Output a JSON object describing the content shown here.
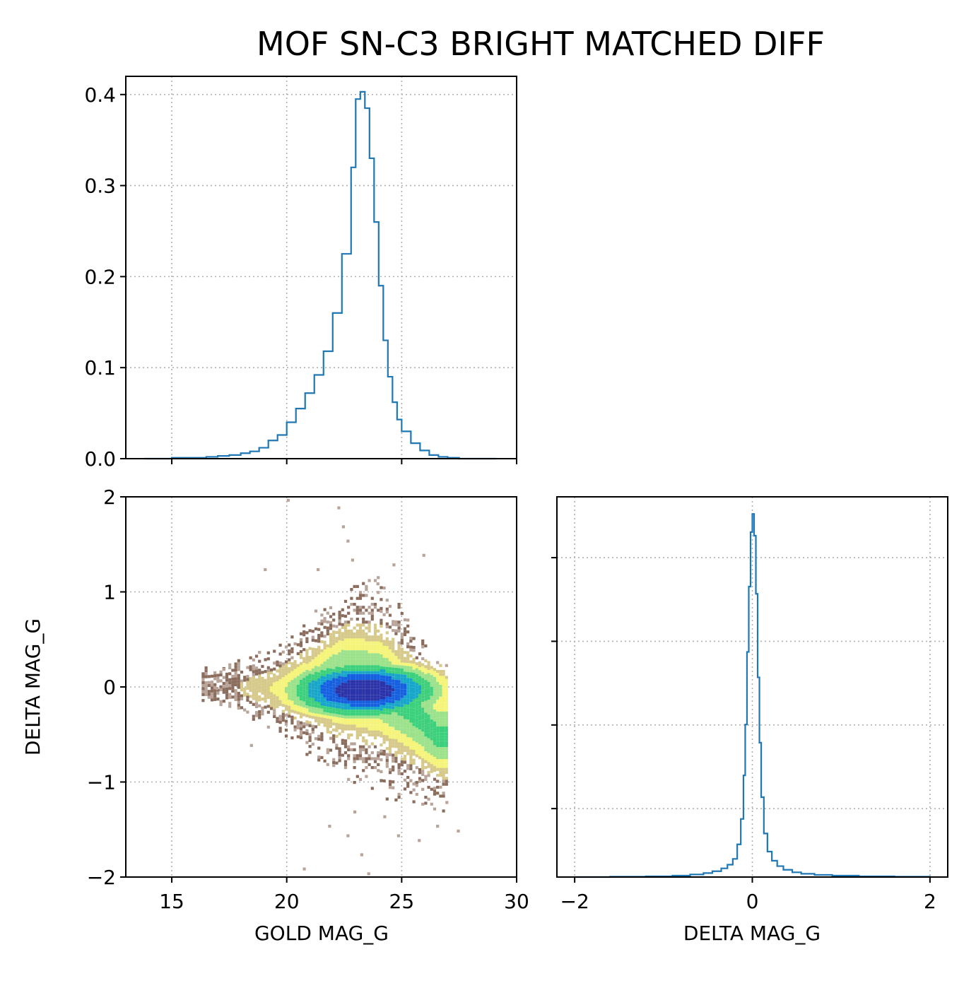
{
  "title": "MOF SN-C3 BRIGHT MATCHED DIFF",
  "colors": {
    "hist": "#1f77b4",
    "grid": "#b0b0b0",
    "colormap": [
      "#b9a49a",
      "#8b6d5e",
      "#d6c98a",
      "#f5f47a",
      "#9be28a",
      "#3dd07c",
      "#17a5c9",
      "#1560e0",
      "#2b33a8"
    ]
  },
  "chart_data": [
    {
      "type": "histogram",
      "name": "top-histogram-gold-mag-g",
      "xlim": [
        13,
        30
      ],
      "ylim": [
        0,
        0.42
      ],
      "xticks": [
        15,
        20,
        25,
        30
      ],
      "yticks": [
        0.0,
        0.1,
        0.2,
        0.3,
        0.4
      ],
      "ytick_labels": [
        "0.0",
        "0.1",
        "0.2",
        "0.3",
        "0.4"
      ],
      "grid": true,
      "x": [
        13.8,
        14.5,
        15.0,
        15.5,
        16.0,
        16.5,
        17.0,
        17.5,
        18.0,
        18.4,
        18.8,
        19.2,
        19.6,
        20.0,
        20.4,
        20.8,
        21.2,
        21.6,
        22.0,
        22.4,
        22.8,
        23.0,
        23.2,
        23.4,
        23.6,
        23.8,
        24.0,
        24.2,
        24.4,
        24.6,
        24.8,
        25.0,
        25.4,
        25.8,
        26.2,
        26.6,
        27.0,
        27.5,
        28.0,
        29.0
      ],
      "values": [
        0.0,
        0.0,
        0.001,
        0.001,
        0.001,
        0.002,
        0.003,
        0.004,
        0.006,
        0.008,
        0.012,
        0.02,
        0.026,
        0.04,
        0.055,
        0.072,
        0.092,
        0.118,
        0.16,
        0.225,
        0.32,
        0.395,
        0.403,
        0.385,
        0.33,
        0.26,
        0.19,
        0.13,
        0.09,
        0.062,
        0.043,
        0.03,
        0.017,
        0.009,
        0.004,
        0.002,
        0.001,
        0.0,
        0.0,
        0.0
      ]
    },
    {
      "type": "heatmap",
      "name": "scatter-density-gold-vs-delta",
      "xlabel": "GOLD MAG_G",
      "ylabel": "DELTA MAG_G",
      "xlim": [
        13,
        30
      ],
      "ylim": [
        -2,
        2
      ],
      "xticks": [
        15,
        20,
        25,
        30
      ],
      "yticks": [
        -2,
        -1,
        0,
        1,
        2
      ],
      "ytick_labels": [
        "−2",
        "−1",
        "0",
        "1",
        "2"
      ],
      "grid": true,
      "density_core": {
        "x": 23.3,
        "y": -0.02
      },
      "envelope": [
        {
          "x": 16.5,
          "lo": -0.15,
          "hi": 0.2
        },
        {
          "x": 18.0,
          "lo": -0.25,
          "hi": 0.25
        },
        {
          "x": 19.5,
          "lo": -0.35,
          "hi": 0.35
        },
        {
          "x": 21.0,
          "lo": -0.55,
          "hi": 0.6
        },
        {
          "x": 22.5,
          "lo": -0.75,
          "hi": 0.9
        },
        {
          "x": 24.0,
          "lo": -0.85,
          "hi": 0.9
        },
        {
          "x": 25.5,
          "lo": -1.0,
          "hi": 0.5
        },
        {
          "x": 26.5,
          "lo": -1.1,
          "hi": 0.1
        }
      ]
    },
    {
      "type": "histogram",
      "name": "right-histogram-delta-mag-g",
      "xlabel": "DELTA MAG_G",
      "xlim": [
        -2.2,
        2.2
      ],
      "ylim": [
        0,
        1.0
      ],
      "xticks": [
        -2,
        0,
        2
      ],
      "xtick_labels": [
        "−2",
        "0",
        "2"
      ],
      "yticks": [
        0.18,
        0.4,
        0.62,
        0.84
      ],
      "grid": true,
      "x": [
        -2.0,
        -1.6,
        -1.2,
        -0.9,
        -0.7,
        -0.55,
        -0.45,
        -0.35,
        -0.28,
        -0.22,
        -0.17,
        -0.13,
        -0.1,
        -0.08,
        -0.06,
        -0.04,
        -0.02,
        0.0,
        0.02,
        0.04,
        0.06,
        0.08,
        0.1,
        0.13,
        0.17,
        0.22,
        0.28,
        0.35,
        0.45,
        0.55,
        0.7,
        0.9,
        1.2,
        1.6,
        2.0
      ],
      "values": [
        0.0,
        0.001,
        0.002,
        0.004,
        0.007,
        0.011,
        0.016,
        0.024,
        0.034,
        0.05,
        0.09,
        0.16,
        0.28,
        0.42,
        0.62,
        0.8,
        0.95,
        1.0,
        0.94,
        0.78,
        0.55,
        0.37,
        0.22,
        0.12,
        0.07,
        0.045,
        0.03,
        0.02,
        0.013,
        0.009,
        0.006,
        0.004,
        0.002,
        0.001,
        0.0
      ]
    }
  ]
}
